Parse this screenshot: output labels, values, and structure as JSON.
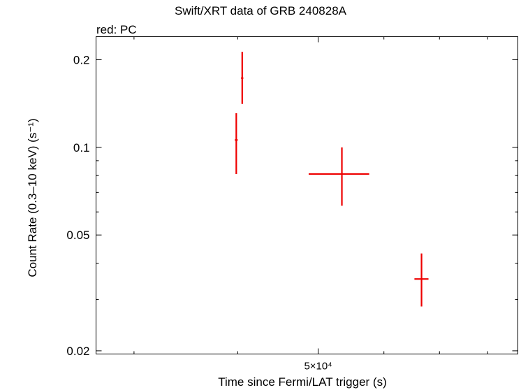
{
  "chart_data": {
    "type": "scatter",
    "title": "Swift/XRT data of GRB 240828A",
    "subtitle": "red: PC",
    "xlabel": "Time since Fermi/LAT trigger (s)",
    "ylabel": "Count Rate (0.3–10 keV) (s⁻¹)",
    "xscale": "log",
    "yscale": "log",
    "xlim": [
      27000,
      87000
    ],
    "ylim": [
      0.0195,
      0.24
    ],
    "xticks": [
      {
        "value": 50000,
        "label": "5×10⁴"
      }
    ],
    "yticks": [
      {
        "value": 0.02,
        "label": "0.02"
      },
      {
        "value": 0.05,
        "label": "0.05"
      },
      {
        "value": 0.1,
        "label": "0.1"
      },
      {
        "value": 0.2,
        "label": "0.2"
      }
    ],
    "grid": false,
    "color": "#ee0000",
    "series": [
      {
        "points": [
          {
            "x": 39840,
            "xerr_minus": 160,
            "xerr_plus": 160,
            "y": 0.106,
            "yerr_minus": 0.025,
            "yerr_plus": 0.025
          },
          {
            "x": 40500,
            "xerr_minus": 130,
            "xerr_plus": 130,
            "y": 0.173,
            "yerr_minus": 0.032,
            "yerr_plus": 0.04
          },
          {
            "x": 53400,
            "xerr_minus": 4700,
            "xerr_plus": 4200,
            "y": 0.081,
            "yerr_minus": 0.018,
            "yerr_plus": 0.019
          },
          {
            "x": 66600,
            "xerr_minus": 1300,
            "xerr_plus": 1300,
            "y": 0.0353,
            "yerr_minus": 0.0069,
            "yerr_plus": 0.0079
          }
        ]
      }
    ]
  }
}
